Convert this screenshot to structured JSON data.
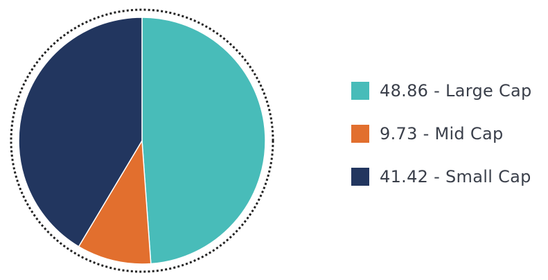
{
  "chart_data": {
    "type": "pie",
    "title": "",
    "slices": [
      {
        "value": 48.86,
        "label": "48.86 - Large Cap",
        "color": "#48bcb9"
      },
      {
        "value": 9.73,
        "label": "9.73 - Mid Cap",
        "color": "#e26f2e"
      },
      {
        "value": 41.42,
        "label": "41.42 - Small Cap",
        "color": "#22365f"
      }
    ],
    "legend_placement": "right",
    "outer_ring": "dotted"
  }
}
